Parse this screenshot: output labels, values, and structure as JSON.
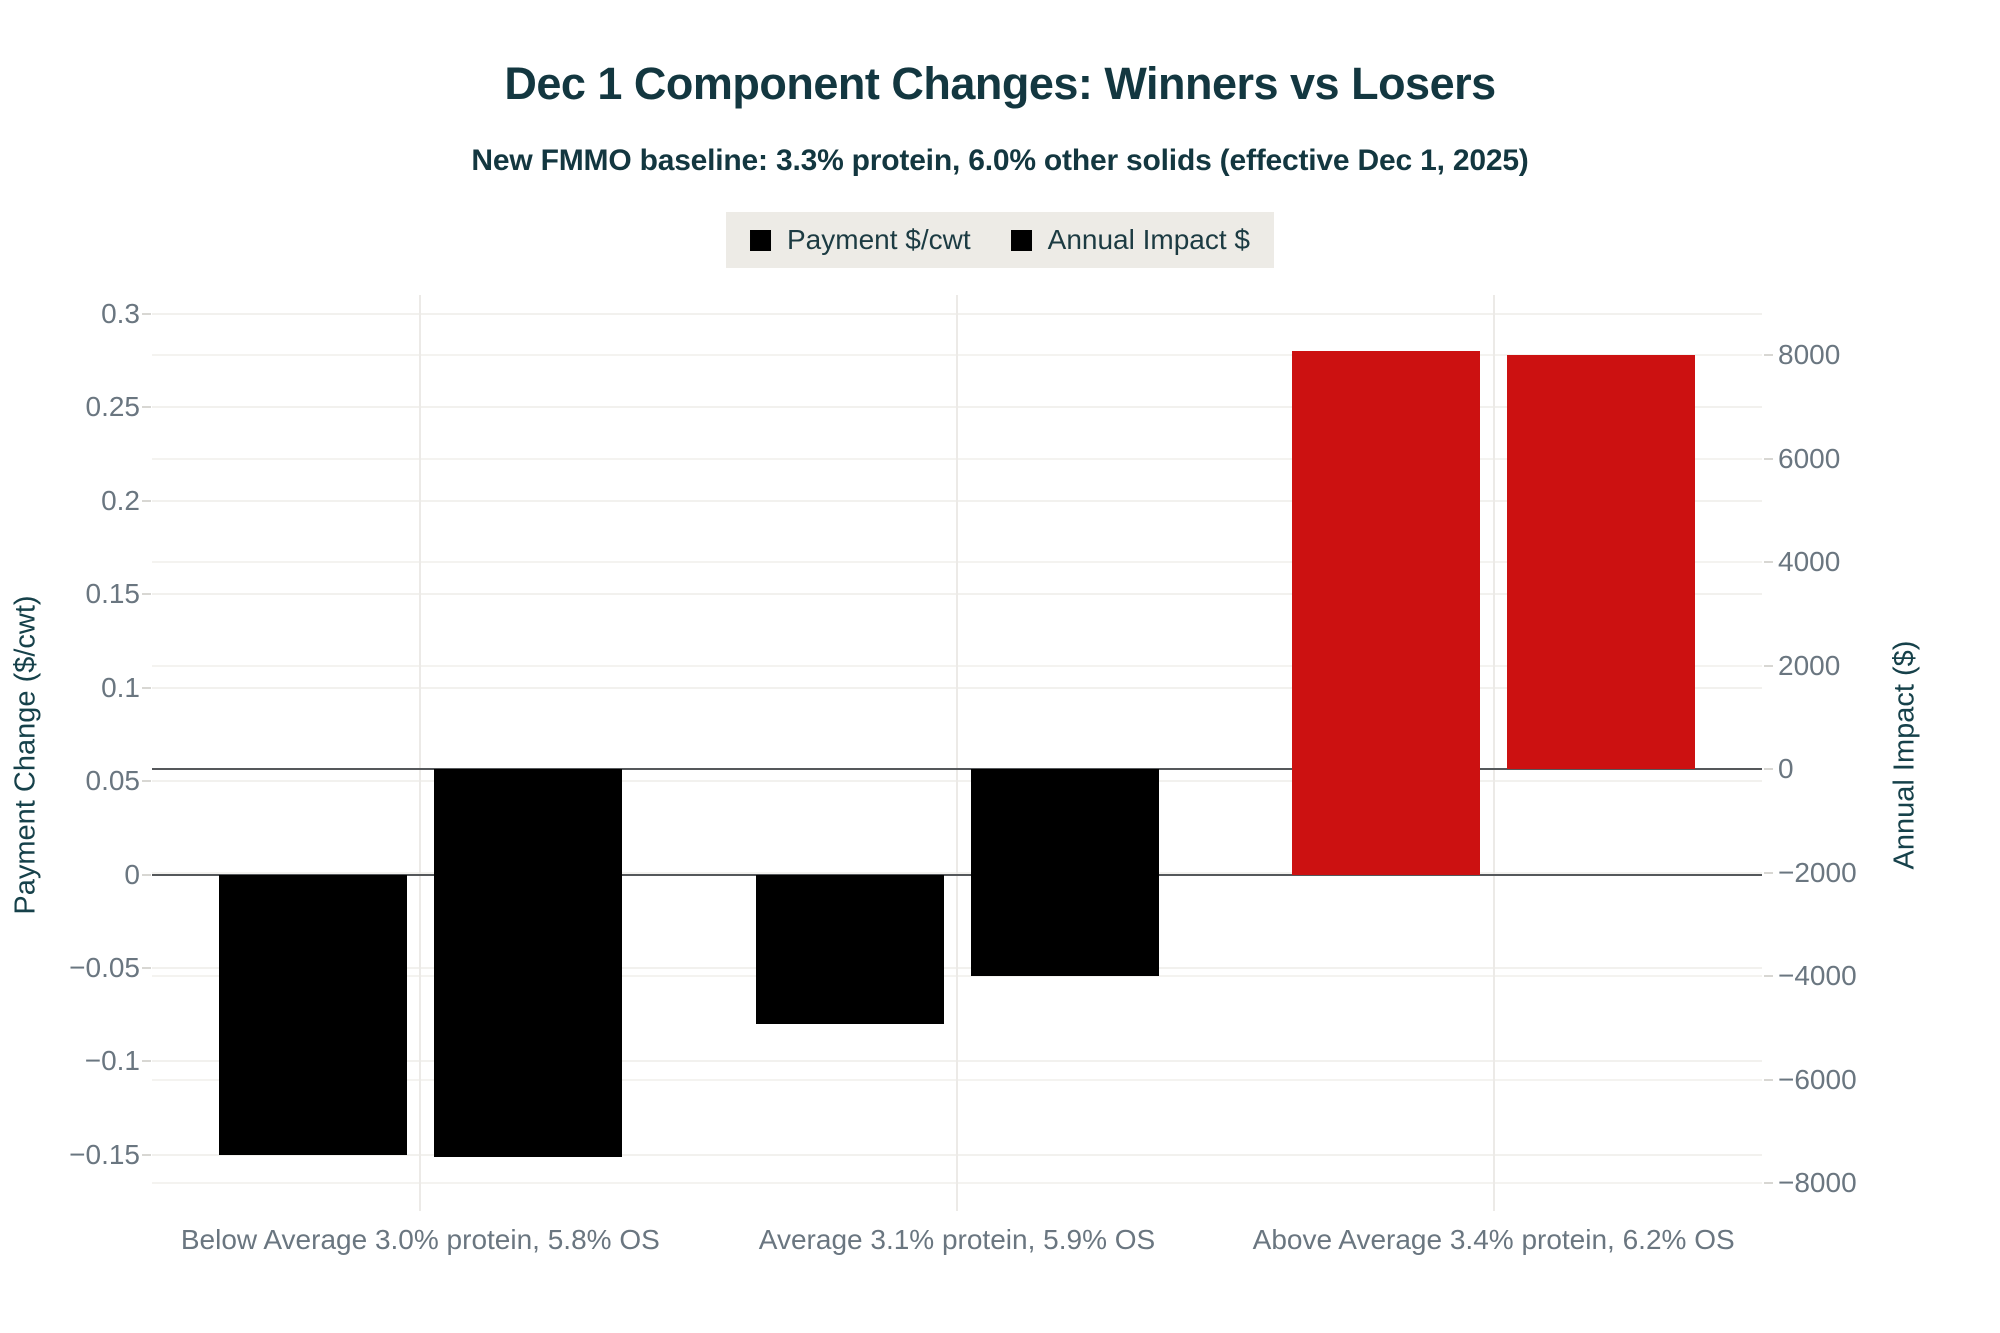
{
  "chart_data": {
    "type": "bar",
    "title": "Dec 1 Component Changes: Winners vs Losers",
    "subtitle": "New FMMO baseline: 3.3% protein, 6.0% other solids (effective Dec 1, 2025)",
    "categories": [
      "Below Average 3.0% protein, 5.8% OS",
      "Average 3.1% protein, 5.9% OS",
      "Above Average 3.4% protein, 6.2% OS"
    ],
    "series": [
      {
        "name": "Payment $/cwt",
        "axis": "left",
        "values": [
          -0.15,
          -0.08,
          0.28
        ],
        "bar_colors": [
          "#000000",
          "#000000",
          "#cc1111"
        ]
      },
      {
        "name": "Annual Impact $",
        "axis": "right",
        "values": [
          -7500,
          -4000,
          8000
        ],
        "bar_colors": [
          "#000000",
          "#000000",
          "#cc1111"
        ]
      }
    ],
    "left_axis": {
      "title": "Payment Change ($/cwt)",
      "min": -0.18,
      "max": 0.31,
      "ticks": [
        {
          "value": 0.3,
          "label": "0.3"
        },
        {
          "value": 0.25,
          "label": "0.25"
        },
        {
          "value": 0.2,
          "label": "0.2"
        },
        {
          "value": 0.15,
          "label": "0.15"
        },
        {
          "value": 0.1,
          "label": "0.1"
        },
        {
          "value": 0.05,
          "label": "0.05"
        },
        {
          "value": 0,
          "label": "0"
        },
        {
          "value": -0.05,
          "label": "−0.05"
        },
        {
          "value": -0.1,
          "label": "−0.1"
        },
        {
          "value": -0.15,
          "label": "−0.15"
        }
      ]
    },
    "right_axis": {
      "title": "Annual Impact ($)",
      "min": -8540,
      "max": 9160,
      "ticks": [
        {
          "value": 8000,
          "label": "8000"
        },
        {
          "value": 6000,
          "label": "6000"
        },
        {
          "value": 4000,
          "label": "4000"
        },
        {
          "value": 2000,
          "label": "2000"
        },
        {
          "value": 0,
          "label": "0"
        },
        {
          "value": -2000,
          "label": "−2000"
        },
        {
          "value": -4000,
          "label": "−4000"
        },
        {
          "value": -6000,
          "label": "−6000"
        },
        {
          "value": -8000,
          "label": "−8000"
        }
      ]
    },
    "legend": {
      "position": "top",
      "items": [
        {
          "label": "Payment $/cwt",
          "swatch": "#000000"
        },
        {
          "label": "Annual Impact $",
          "swatch": "#000000"
        }
      ]
    },
    "grid": true
  },
  "colors": {
    "title_text": "#133740",
    "axis_title_text": "#16414a",
    "tick_text": "#6a7680",
    "grid_line": "#f2f1ee",
    "vertical_grid_line": "#eceae7",
    "zero_line": "#55585b",
    "legend_background": "#edebe6",
    "winner_red": "#cc1111",
    "loser_black": "#000000"
  }
}
